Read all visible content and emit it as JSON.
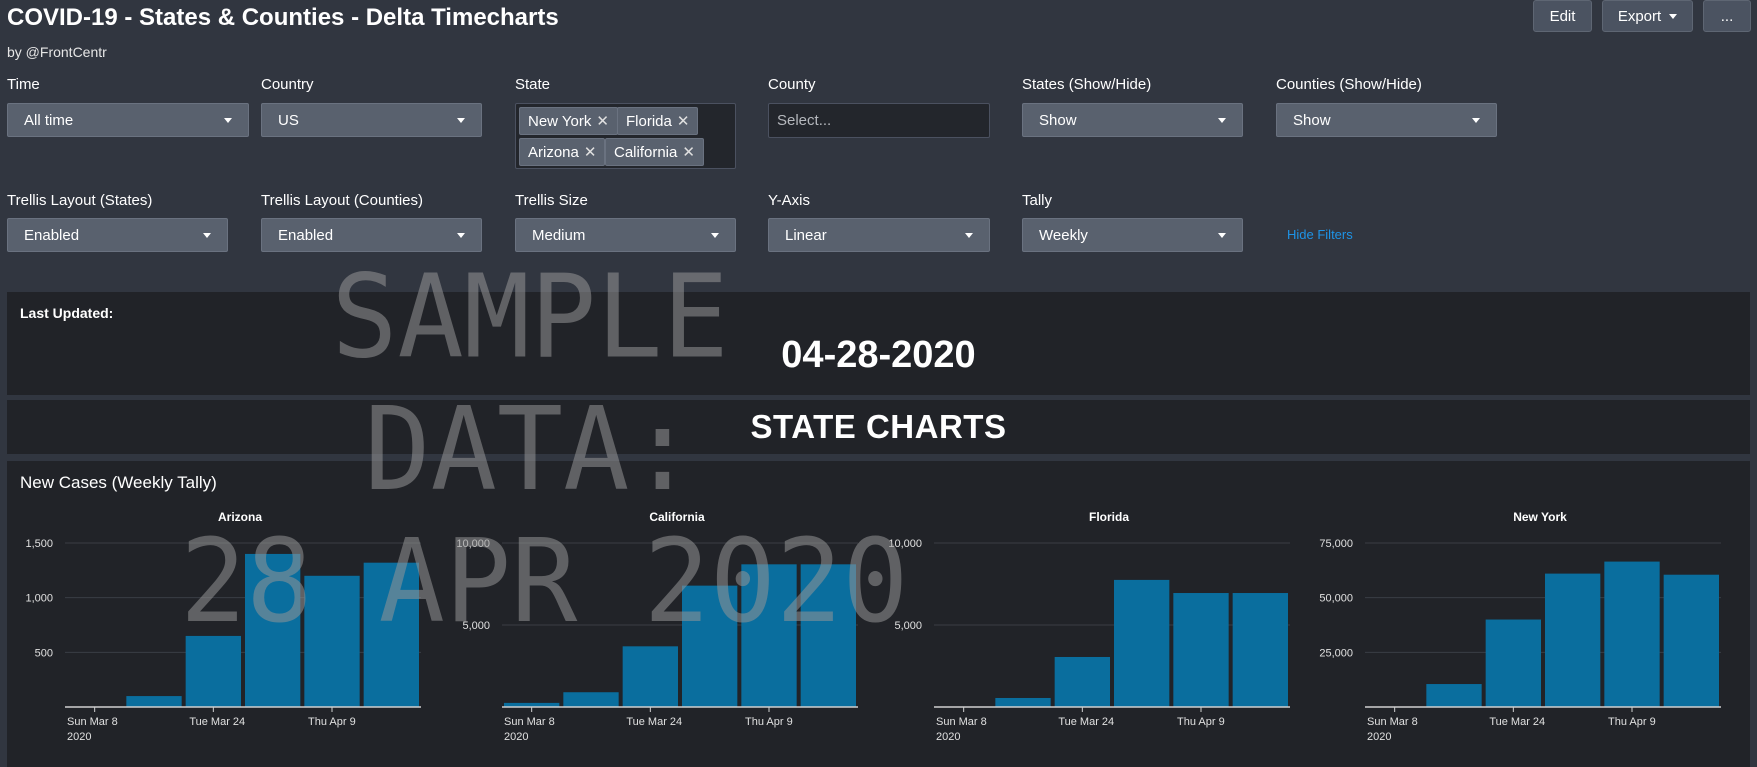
{
  "header": {
    "title": "COVID-19 - States & Counties - Delta Timecharts",
    "byline": "by @FrontCentr",
    "edit_label": "Edit",
    "export_label": "Export",
    "more_label": "..."
  },
  "filters": {
    "time": {
      "label": "Time",
      "value": "All time"
    },
    "country": {
      "label": "Country",
      "value": "US"
    },
    "state": {
      "label": "State",
      "tags": [
        "New York",
        "Florida",
        "Arizona",
        "California"
      ]
    },
    "county": {
      "label": "County",
      "placeholder": "Select..."
    },
    "states_show": {
      "label": "States (Show/Hide)",
      "value": "Show"
    },
    "counties_show": {
      "label": "Counties (Show/Hide)",
      "value": "Show"
    },
    "trellis_states": {
      "label": "Trellis Layout (States)",
      "value": "Enabled"
    },
    "trellis_counties": {
      "label": "Trellis Layout (Counties)",
      "value": "Enabled"
    },
    "trellis_size": {
      "label": "Trellis Size",
      "value": "Medium"
    },
    "y_axis": {
      "label": "Y-Axis",
      "value": "Linear"
    },
    "tally": {
      "label": "Tally",
      "value": "Weekly"
    },
    "hide_filters": "Hide Filters"
  },
  "updated": {
    "label": "Last Updated:",
    "value": "04-28-2020"
  },
  "section_heading": "STATE CHARTS",
  "charts_panel_title": "New Cases (Weekly Tally)",
  "watermark": [
    "SAMPLE",
    "DATA:",
    "28 APR 2020"
  ],
  "colors": {
    "bar": "#0a6e9e",
    "background": "#313640",
    "panel": "#212328",
    "link": "#1e93e6"
  },
  "chart_data": [
    {
      "type": "bar",
      "title": "Arizona",
      "x_ticks": [
        [
          "Sun Mar 8",
          "2020"
        ],
        [
          "Tue Mar 24"
        ],
        [
          "Thu Apr 9"
        ]
      ],
      "x_tick_positions": [
        0,
        2,
        4
      ],
      "values": [
        0,
        100,
        650,
        1400,
        1200,
        1320
      ],
      "yticks": [
        500,
        1000,
        1500
      ],
      "ytick_labels": [
        "500",
        "1,000",
        "1,500"
      ],
      "ylim": [
        0,
        1500
      ]
    },
    {
      "type": "bar",
      "title": "California",
      "x_ticks": [
        [
          "Sun Mar 8",
          "2020"
        ],
        [
          "Tue Mar 24"
        ],
        [
          "Thu Apr 9"
        ]
      ],
      "x_tick_positions": [
        0,
        2,
        4
      ],
      "values": [
        250,
        900,
        3700,
        7400,
        8700,
        8700
      ],
      "yticks": [
        5000,
        10000
      ],
      "ytick_labels": [
        "5,000",
        "10,000"
      ],
      "ylim": [
        0,
        10000
      ]
    },
    {
      "type": "bar",
      "title": "Florida",
      "x_ticks": [
        [
          "Sun Mar 8",
          "2020"
        ],
        [
          "Tue Mar 24"
        ],
        [
          "Thu Apr 9"
        ]
      ],
      "x_tick_positions": [
        0,
        2,
        4
      ],
      "values": [
        0,
        550,
        3050,
        7750,
        6950,
        6950
      ],
      "yticks": [
        5000,
        10000
      ],
      "ytick_labels": [
        "5,000",
        "10,000"
      ],
      "ylim": [
        0,
        10000
      ]
    },
    {
      "type": "bar",
      "title": "New York",
      "x_ticks": [
        [
          "Sun Mar 8",
          "2020"
        ],
        [
          "Tue Mar 24"
        ],
        [
          "Thu Apr 9"
        ]
      ],
      "x_tick_positions": [
        0,
        2,
        4
      ],
      "values": [
        0,
        10500,
        40000,
        61000,
        66500,
        60500
      ],
      "yticks": [
        25000,
        50000,
        75000
      ],
      "ytick_labels": [
        "25,000",
        "50,000",
        "75,000"
      ],
      "ylim": [
        0,
        75000
      ]
    }
  ]
}
